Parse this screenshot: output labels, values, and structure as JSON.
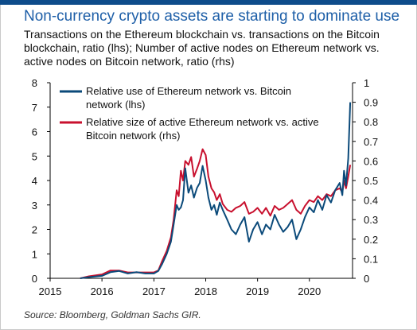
{
  "title": "Non-currency crypto assets are starting to dominate use",
  "subtitle": "Transactions on the Ethereum blockchain vs. transactions on the Bitcoin blockchain, ratio (lhs); Number of active nodes on Ethereum network vs. active nodes on Bitcoin network, ratio (rhs)",
  "source": "Source: Bloomberg, Goldman Sachs GIR.",
  "colors": {
    "series_lhs": "#0b4a7a",
    "series_rhs": "#c8102e",
    "title": "#1e5fa8",
    "rule": "#0e4c8b"
  },
  "chart_data": {
    "type": "line",
    "x_ticks": [
      "2015",
      "2016",
      "2017",
      "2018",
      "2019",
      "2020"
    ],
    "xlim": [
      "2015-01-01",
      "2020-10-31"
    ],
    "y_left": {
      "ticks": [
        "0",
        "1",
        "2",
        "3",
        "4",
        "5",
        "6",
        "7",
        "8"
      ],
      "lim": [
        0,
        8
      ]
    },
    "y_right": {
      "ticks": [
        "0",
        "0.1",
        "0.2",
        "0.3",
        "0.4",
        "0.5",
        "0.6",
        "0.7",
        "0.8",
        "0.9",
        "1"
      ],
      "lim": [
        0,
        1
      ]
    },
    "legend_placement": "top-left",
    "grid": false,
    "series": [
      {
        "name": "Relative use of Ethereum network vs. Bitcoin network (lhs)",
        "axis": "left",
        "x": [
          "2015-08-01",
          "2015-10-01",
          "2016-01-01",
          "2016-03-01",
          "2016-05-01",
          "2016-07-01",
          "2016-09-01",
          "2016-11-01",
          "2017-01-01",
          "2017-02-01",
          "2017-03-01",
          "2017-04-01",
          "2017-05-01",
          "2017-05-20",
          "2017-06-10",
          "2017-06-25",
          "2017-07-10",
          "2017-07-25",
          "2017-08-10",
          "2017-09-01",
          "2017-09-20",
          "2017-10-10",
          "2017-11-01",
          "2017-11-20",
          "2017-12-10",
          "2018-01-01",
          "2018-01-20",
          "2018-02-10",
          "2018-03-01",
          "2018-03-20",
          "2018-04-10",
          "2018-05-01",
          "2018-06-01",
          "2018-07-01",
          "2018-08-01",
          "2018-09-01",
          "2018-10-01",
          "2018-11-01",
          "2018-12-01",
          "2019-01-01",
          "2019-02-01",
          "2019-03-01",
          "2019-04-01",
          "2019-05-01",
          "2019-06-01",
          "2019-07-01",
          "2019-08-01",
          "2019-09-01",
          "2019-10-01",
          "2019-11-01",
          "2019-12-01",
          "2020-01-01",
          "2020-02-01",
          "2020-03-01",
          "2020-04-01",
          "2020-05-01",
          "2020-06-01",
          "2020-07-01",
          "2020-08-01",
          "2020-08-20",
          "2020-09-01",
          "2020-09-15",
          "2020-10-01",
          "2020-10-15"
        ],
        "y": [
          0.0,
          0.05,
          0.1,
          0.25,
          0.3,
          0.2,
          0.25,
          0.2,
          0.2,
          0.3,
          0.6,
          1.0,
          1.5,
          2.2,
          3.0,
          2.8,
          2.9,
          3.2,
          4.5,
          3.5,
          3.8,
          3.3,
          3.7,
          3.9,
          4.6,
          4.0,
          3.3,
          2.8,
          3.0,
          2.6,
          3.1,
          2.8,
          2.4,
          2.0,
          1.8,
          2.2,
          2.5,
          1.5,
          2.0,
          2.3,
          1.8,
          2.2,
          2.0,
          2.6,
          2.2,
          1.9,
          2.1,
          2.4,
          1.6,
          2.0,
          2.5,
          2.9,
          2.7,
          3.2,
          2.8,
          3.4,
          3.1,
          3.6,
          3.9,
          3.4,
          4.4,
          3.8,
          4.9,
          7.2
        ]
      },
      {
        "name": "Relative size of active Ethereum network vs. active Bitcoin network (rhs)",
        "axis": "right",
        "x": [
          "2015-08-01",
          "2015-10-01",
          "2016-01-01",
          "2016-03-01",
          "2016-05-01",
          "2016-07-01",
          "2016-09-01",
          "2016-11-01",
          "2017-01-01",
          "2017-02-01",
          "2017-03-01",
          "2017-04-01",
          "2017-05-01",
          "2017-05-20",
          "2017-06-10",
          "2017-06-25",
          "2017-07-10",
          "2017-07-25",
          "2017-08-10",
          "2017-09-01",
          "2017-09-20",
          "2017-10-10",
          "2017-11-01",
          "2017-11-20",
          "2017-12-10",
          "2018-01-01",
          "2018-01-20",
          "2018-02-10",
          "2018-03-01",
          "2018-03-20",
          "2018-04-10",
          "2018-05-01",
          "2018-06-01",
          "2018-07-01",
          "2018-08-01",
          "2018-09-01",
          "2018-10-01",
          "2018-11-01",
          "2018-12-01",
          "2019-01-01",
          "2019-02-01",
          "2019-03-01",
          "2019-04-01",
          "2019-05-01",
          "2019-06-01",
          "2019-07-01",
          "2019-08-01",
          "2019-09-01",
          "2019-10-01",
          "2019-11-01",
          "2019-12-01",
          "2020-01-01",
          "2020-02-01",
          "2020-03-01",
          "2020-04-01",
          "2020-05-01",
          "2020-06-01",
          "2020-07-01",
          "2020-08-01",
          "2020-08-20",
          "2020-09-01",
          "2020-09-15",
          "2020-10-01",
          "2020-10-15"
        ],
        "y": [
          0.0,
          0.01,
          0.02,
          0.04,
          0.04,
          0.03,
          0.03,
          0.03,
          0.03,
          0.04,
          0.09,
          0.14,
          0.21,
          0.3,
          0.45,
          0.42,
          0.55,
          0.5,
          0.6,
          0.58,
          0.62,
          0.52,
          0.56,
          0.6,
          0.66,
          0.63,
          0.52,
          0.46,
          0.44,
          0.4,
          0.43,
          0.38,
          0.35,
          0.34,
          0.36,
          0.37,
          0.39,
          0.33,
          0.34,
          0.36,
          0.33,
          0.36,
          0.32,
          0.37,
          0.35,
          0.36,
          0.38,
          0.4,
          0.35,
          0.33,
          0.37,
          0.4,
          0.39,
          0.42,
          0.4,
          0.43,
          0.42,
          0.45,
          0.46,
          0.44,
          0.5,
          0.46,
          0.52,
          0.58
        ]
      }
    ]
  }
}
